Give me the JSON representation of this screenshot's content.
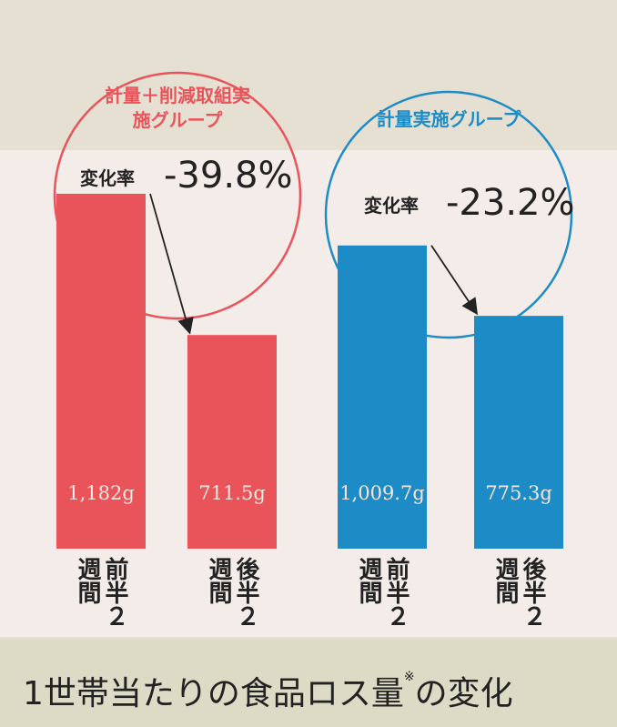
{
  "chart_data": {
    "type": "bar",
    "title": "1世帯当たりの食品ロス量",
    "title_note_mark": "※",
    "title_suffix": "の変化",
    "change_caption": "変化率",
    "categories": [
      "前半２週間",
      "後半２週間"
    ],
    "series": [
      {
        "name": "計量＋削減取組実施グループ",
        "color": "#e8545a",
        "values": [
          1182,
          711.5
        ],
        "value_labels": [
          "1,182g",
          "711.5g"
        ],
        "change": "-39.8%"
      },
      {
        "name": "計量実施グループ",
        "color": "#1d8cc6",
        "values": [
          1009.7,
          775.3
        ],
        "value_labels": [
          "1,009.7g",
          "775.3g"
        ],
        "change": "-23.2%"
      }
    ]
  }
}
